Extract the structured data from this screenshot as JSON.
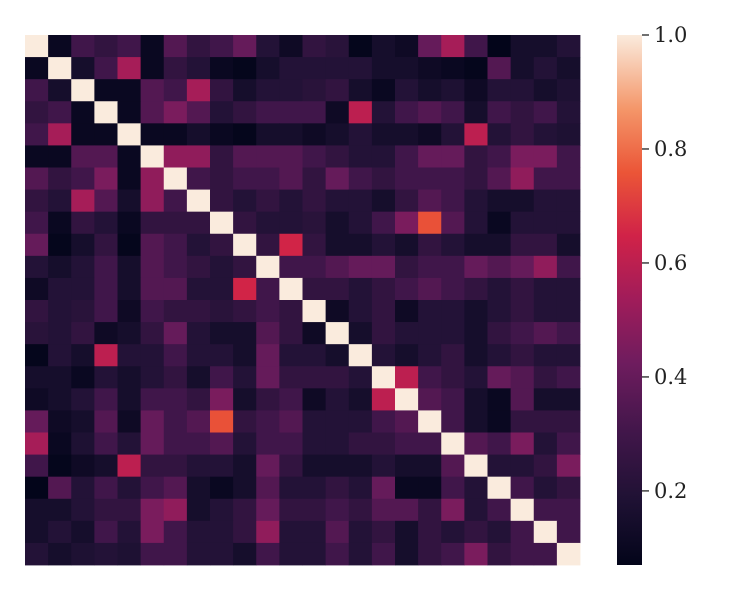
{
  "chart_data": {
    "type": "heatmap",
    "title": "",
    "xlabel": "",
    "ylabel": "",
    "size": 24,
    "grid": false,
    "colorbar": {
      "vmin": 0.07,
      "vmax": 1.0,
      "ticks": [
        0.2,
        0.4,
        0.6,
        0.8,
        1.0
      ],
      "tick_labels": [
        "0.2",
        "0.4",
        "0.6",
        "0.8",
        "1.0"
      ],
      "colormap": "rocket",
      "placement": "right"
    },
    "values": [
      [
        1.0,
        0.1,
        0.3,
        0.25,
        0.3,
        0.1,
        0.35,
        0.25,
        0.3,
        0.4,
        0.2,
        0.12,
        0.25,
        0.22,
        0.08,
        0.15,
        0.12,
        0.4,
        0.55,
        0.3,
        0.05,
        0.15,
        0.15,
        0.2
      ],
      [
        0.1,
        1.0,
        0.15,
        0.3,
        0.55,
        0.1,
        0.25,
        0.2,
        0.1,
        0.08,
        0.15,
        0.2,
        0.2,
        0.2,
        0.2,
        0.15,
        0.15,
        0.12,
        0.1,
        0.08,
        0.35,
        0.15,
        0.2,
        0.15
      ],
      [
        0.3,
        0.15,
        1.0,
        0.1,
        0.1,
        0.35,
        0.3,
        0.55,
        0.25,
        0.15,
        0.2,
        0.2,
        0.22,
        0.25,
        0.15,
        0.1,
        0.2,
        0.15,
        0.18,
        0.12,
        0.2,
        0.2,
        0.15,
        0.18
      ],
      [
        0.25,
        0.3,
        0.1,
        1.0,
        0.1,
        0.35,
        0.45,
        0.35,
        0.2,
        0.25,
        0.3,
        0.3,
        0.3,
        0.12,
        0.6,
        0.2,
        0.3,
        0.35,
        0.3,
        0.15,
        0.3,
        0.25,
        0.3,
        0.2
      ],
      [
        0.3,
        0.55,
        0.1,
        0.1,
        1.0,
        0.1,
        0.1,
        0.15,
        0.1,
        0.08,
        0.15,
        0.15,
        0.12,
        0.15,
        0.2,
        0.15,
        0.15,
        0.12,
        0.2,
        0.6,
        0.2,
        0.25,
        0.2,
        0.18
      ],
      [
        0.1,
        0.1,
        0.35,
        0.35,
        0.1,
        1.0,
        0.5,
        0.5,
        0.25,
        0.35,
        0.35,
        0.35,
        0.3,
        0.25,
        0.2,
        0.2,
        0.3,
        0.4,
        0.4,
        0.25,
        0.3,
        0.45,
        0.45,
        0.3
      ],
      [
        0.35,
        0.25,
        0.3,
        0.45,
        0.1,
        0.5,
        1.0,
        0.3,
        0.25,
        0.3,
        0.3,
        0.35,
        0.25,
        0.4,
        0.3,
        0.25,
        0.3,
        0.3,
        0.3,
        0.25,
        0.35,
        0.5,
        0.3,
        0.3
      ],
      [
        0.25,
        0.2,
        0.55,
        0.35,
        0.15,
        0.5,
        0.3,
        1.0,
        0.25,
        0.2,
        0.25,
        0.2,
        0.25,
        0.2,
        0.2,
        0.15,
        0.25,
        0.35,
        0.3,
        0.2,
        0.15,
        0.15,
        0.2,
        0.2
      ],
      [
        0.3,
        0.1,
        0.25,
        0.2,
        0.1,
        0.25,
        0.25,
        0.25,
        1.0,
        0.25,
        0.2,
        0.2,
        0.22,
        0.15,
        0.2,
        0.3,
        0.45,
        0.75,
        0.35,
        0.2,
        0.1,
        0.2,
        0.2,
        0.2
      ],
      [
        0.4,
        0.08,
        0.15,
        0.25,
        0.08,
        0.35,
        0.3,
        0.2,
        0.25,
        1.0,
        0.25,
        0.65,
        0.25,
        0.15,
        0.15,
        0.2,
        0.15,
        0.25,
        0.2,
        0.15,
        0.15,
        0.25,
        0.25,
        0.15
      ],
      [
        0.2,
        0.15,
        0.2,
        0.3,
        0.15,
        0.35,
        0.3,
        0.25,
        0.2,
        0.25,
        1.0,
        0.3,
        0.3,
        0.35,
        0.4,
        0.4,
        0.25,
        0.3,
        0.3,
        0.4,
        0.35,
        0.4,
        0.5,
        0.3
      ],
      [
        0.12,
        0.2,
        0.2,
        0.3,
        0.15,
        0.35,
        0.35,
        0.2,
        0.2,
        0.65,
        0.3,
        1.0,
        0.25,
        0.25,
        0.2,
        0.25,
        0.3,
        0.35,
        0.3,
        0.25,
        0.2,
        0.25,
        0.2,
        0.2
      ],
      [
        0.25,
        0.2,
        0.22,
        0.3,
        0.12,
        0.3,
        0.25,
        0.25,
        0.22,
        0.25,
        0.3,
        0.25,
        1.0,
        0.12,
        0.2,
        0.25,
        0.12,
        0.2,
        0.2,
        0.15,
        0.2,
        0.25,
        0.2,
        0.2
      ],
      [
        0.22,
        0.2,
        0.25,
        0.12,
        0.15,
        0.25,
        0.4,
        0.2,
        0.15,
        0.15,
        0.35,
        0.25,
        0.12,
        1.0,
        0.15,
        0.25,
        0.2,
        0.2,
        0.2,
        0.15,
        0.25,
        0.3,
        0.35,
        0.3
      ],
      [
        0.08,
        0.2,
        0.15,
        0.6,
        0.2,
        0.2,
        0.3,
        0.2,
        0.2,
        0.15,
        0.4,
        0.2,
        0.2,
        0.15,
        1.0,
        0.2,
        0.15,
        0.2,
        0.25,
        0.15,
        0.2,
        0.25,
        0.2,
        0.2
      ],
      [
        0.15,
        0.15,
        0.1,
        0.2,
        0.15,
        0.2,
        0.25,
        0.15,
        0.3,
        0.2,
        0.4,
        0.25,
        0.25,
        0.25,
        0.2,
        1.0,
        0.6,
        0.3,
        0.25,
        0.2,
        0.4,
        0.35,
        0.25,
        0.3
      ],
      [
        0.12,
        0.15,
        0.2,
        0.3,
        0.15,
        0.3,
        0.3,
        0.25,
        0.45,
        0.15,
        0.25,
        0.3,
        0.12,
        0.2,
        0.15,
        0.6,
        1.0,
        0.35,
        0.3,
        0.15,
        0.1,
        0.35,
        0.15,
        0.15
      ],
      [
        0.4,
        0.12,
        0.15,
        0.35,
        0.12,
        0.4,
        0.3,
        0.35,
        0.75,
        0.25,
        0.3,
        0.35,
        0.2,
        0.2,
        0.2,
        0.3,
        0.35,
        1.0,
        0.3,
        0.15,
        0.1,
        0.25,
        0.25,
        0.25
      ],
      [
        0.55,
        0.1,
        0.18,
        0.3,
        0.2,
        0.4,
        0.3,
        0.3,
        0.35,
        0.2,
        0.3,
        0.3,
        0.2,
        0.2,
        0.25,
        0.25,
        0.3,
        0.3,
        1.0,
        0.35,
        0.3,
        0.45,
        0.2,
        0.3
      ],
      [
        0.3,
        0.08,
        0.12,
        0.15,
        0.6,
        0.25,
        0.25,
        0.2,
        0.2,
        0.15,
        0.4,
        0.25,
        0.15,
        0.15,
        0.15,
        0.2,
        0.15,
        0.15,
        0.35,
        1.0,
        0.2,
        0.2,
        0.25,
        0.45
      ],
      [
        0.05,
        0.35,
        0.2,
        0.3,
        0.2,
        0.3,
        0.35,
        0.15,
        0.1,
        0.15,
        0.35,
        0.2,
        0.2,
        0.25,
        0.2,
        0.4,
        0.1,
        0.1,
        0.3,
        0.2,
        1.0,
        0.3,
        0.2,
        0.25
      ],
      [
        0.15,
        0.15,
        0.2,
        0.25,
        0.25,
        0.45,
        0.5,
        0.15,
        0.2,
        0.25,
        0.4,
        0.25,
        0.25,
        0.3,
        0.25,
        0.35,
        0.35,
        0.25,
        0.45,
        0.2,
        0.3,
        1.0,
        0.3,
        0.3
      ],
      [
        0.15,
        0.2,
        0.15,
        0.3,
        0.2,
        0.45,
        0.3,
        0.2,
        0.2,
        0.25,
        0.5,
        0.2,
        0.2,
        0.35,
        0.2,
        0.25,
        0.15,
        0.25,
        0.2,
        0.25,
        0.2,
        0.3,
        1.0,
        0.3
      ],
      [
        0.2,
        0.15,
        0.18,
        0.2,
        0.18,
        0.3,
        0.3,
        0.2,
        0.2,
        0.15,
        0.3,
        0.2,
        0.2,
        0.3,
        0.2,
        0.3,
        0.15,
        0.25,
        0.3,
        0.45,
        0.25,
        0.3,
        0.3,
        1.0
      ]
    ]
  }
}
